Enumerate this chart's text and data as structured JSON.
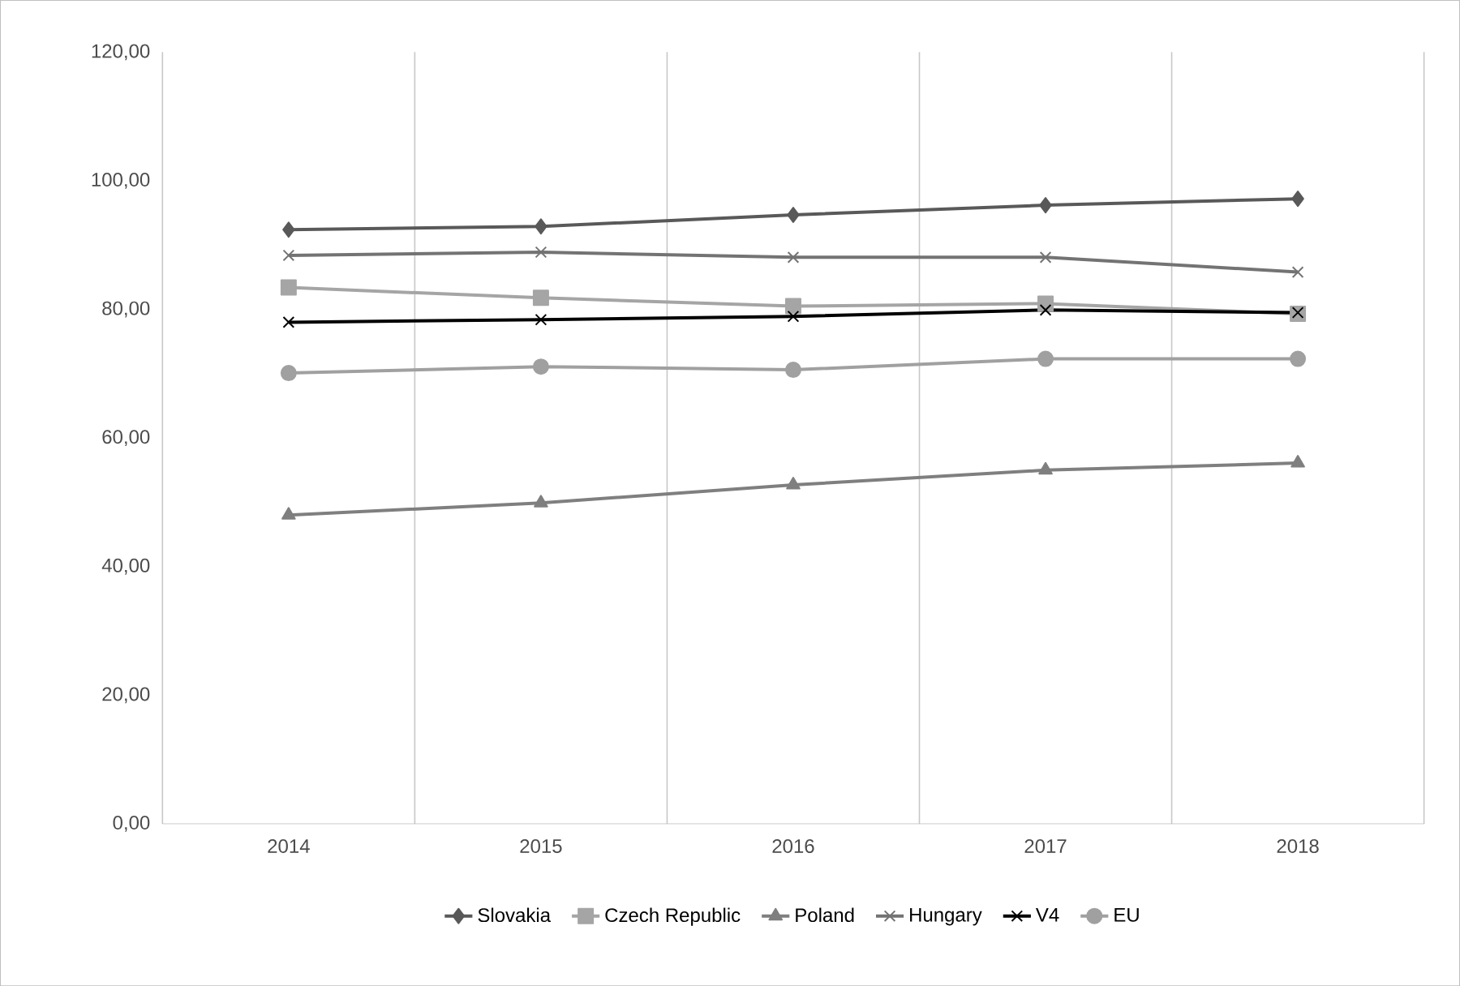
{
  "chart_data": {
    "type": "line",
    "categories": [
      "2014",
      "2015",
      "2016",
      "2017",
      "2018"
    ],
    "series": [
      {
        "name": "Slovakia",
        "color": "#595959",
        "marker": "diamond",
        "values": [
          92.4,
          92.9,
          94.7,
          96.2,
          97.2
        ]
      },
      {
        "name": "Czech Republic",
        "color": "#a5a5a5",
        "marker": "square",
        "values": [
          83.4,
          81.8,
          80.5,
          80.9,
          79.3
        ]
      },
      {
        "name": "Poland",
        "color": "#7f7f7f",
        "marker": "triangle",
        "values": [
          48.0,
          49.9,
          52.7,
          55.0,
          56.1
        ]
      },
      {
        "name": "Hungary",
        "color": "#737373",
        "marker": "cross",
        "values": [
          88.4,
          88.9,
          88.1,
          88.1,
          85.8
        ]
      },
      {
        "name": "V4",
        "color": "#000000",
        "marker": "cross",
        "values": [
          78.0,
          78.4,
          78.9,
          79.9,
          79.5
        ]
      },
      {
        "name": "EU",
        "color": "#a0a0a0",
        "marker": "circle",
        "values": [
          70.1,
          71.1,
          70.6,
          72.3,
          72.3
        ]
      }
    ],
    "ylim": [
      0,
      120
    ],
    "yticks": [
      {
        "value": 0,
        "label": "0,00"
      },
      {
        "value": 20,
        "label": "20,00"
      },
      {
        "value": 40,
        "label": "40,00"
      },
      {
        "value": 60,
        "label": "60,00"
      },
      {
        "value": 80,
        "label": "80,00"
      },
      {
        "value": 100,
        "label": "100,00"
      },
      {
        "value": 120,
        "label": "120,00"
      }
    ],
    "grid": "x",
    "legend": "bottom"
  }
}
